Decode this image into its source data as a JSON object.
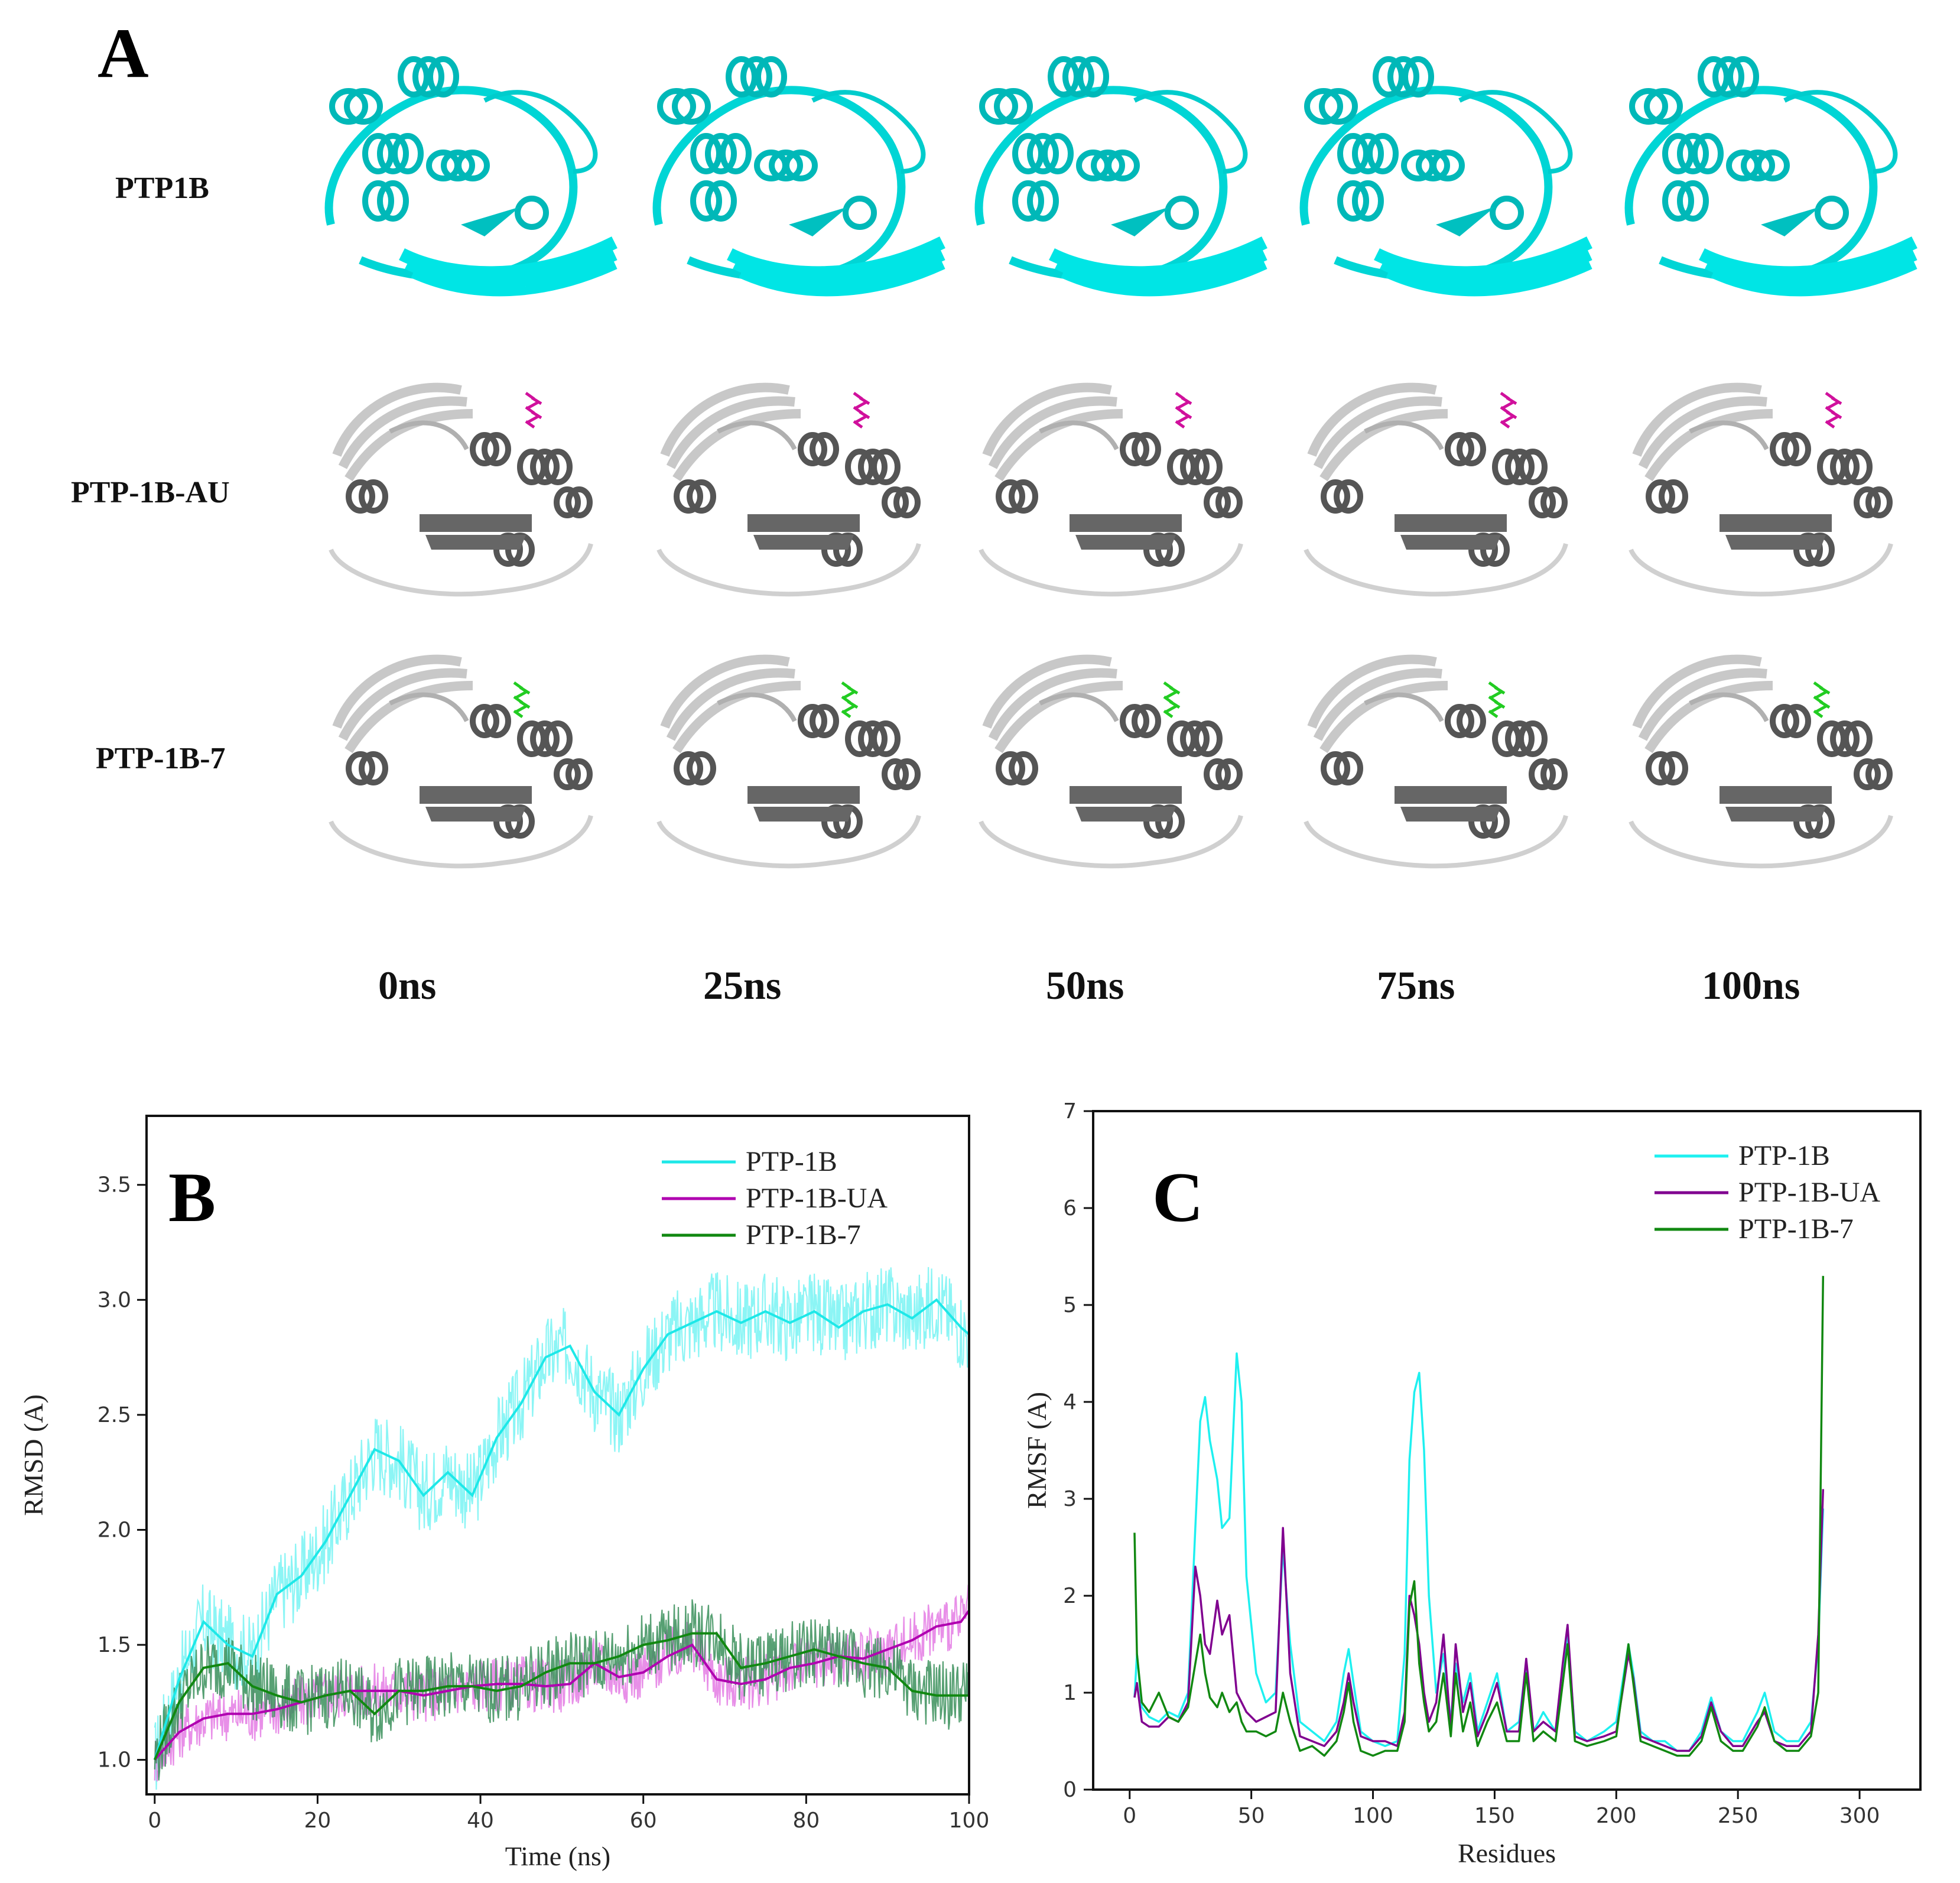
{
  "panel_a": {
    "letter": "A",
    "rows": [
      {
        "label": "PTP1B",
        "protein_color": "#00e0e0",
        "ligand": null
      },
      {
        "label": "PTP-1B-AU",
        "protein_color": "#8a8a8a",
        "ligand": "#d0109c"
      },
      {
        "label": "PTP-1B-7",
        "protein_color": "#8a8a8a",
        "ligand": "#22cc22"
      }
    ],
    "times": [
      "0ns",
      "25ns",
      "50ns",
      "75ns",
      "100ns"
    ]
  },
  "chart_data": [
    {
      "panel": "B",
      "type": "line",
      "title": "",
      "xlabel": "Time (ns)",
      "ylabel": "RMSD (A)",
      "xlim": [
        0,
        100
      ],
      "ylim": [
        0.85,
        3.8
      ],
      "xticks": [
        0,
        20,
        40,
        60,
        80,
        100
      ],
      "yticks": [
        1.0,
        1.5,
        2.0,
        2.5,
        3.0,
        3.5
      ],
      "legend": "top-right",
      "series": [
        {
          "name": "PTP-1B",
          "color": "#1ee8e8",
          "noise_color": "#7ff4f4",
          "x": [
            0,
            3,
            6,
            9,
            12,
            15,
            18,
            21,
            24,
            27,
            30,
            33,
            36,
            39,
            42,
            45,
            48,
            51,
            54,
            57,
            60,
            63,
            66,
            69,
            72,
            75,
            78,
            81,
            84,
            87,
            90,
            93,
            96,
            99,
            100
          ],
          "values": [
            1.0,
            1.35,
            1.6,
            1.5,
            1.45,
            1.72,
            1.8,
            1.95,
            2.15,
            2.35,
            2.3,
            2.15,
            2.25,
            2.15,
            2.4,
            2.55,
            2.75,
            2.8,
            2.6,
            2.5,
            2.7,
            2.85,
            2.9,
            2.95,
            2.9,
            2.95,
            2.9,
            2.95,
            2.88,
            2.95,
            2.98,
            2.92,
            3.0,
            2.88,
            2.85
          ]
        },
        {
          "name": "PTP-1B-UA",
          "color": "#b000b0",
          "noise_color": "#e683e6",
          "x": [
            0,
            3,
            6,
            9,
            12,
            15,
            18,
            21,
            24,
            27,
            30,
            33,
            36,
            39,
            42,
            45,
            48,
            51,
            54,
            57,
            60,
            63,
            66,
            69,
            72,
            75,
            78,
            81,
            84,
            87,
            90,
            93,
            96,
            99,
            100
          ],
          "values": [
            1.0,
            1.12,
            1.18,
            1.2,
            1.2,
            1.22,
            1.25,
            1.28,
            1.3,
            1.3,
            1.3,
            1.28,
            1.3,
            1.32,
            1.33,
            1.33,
            1.32,
            1.33,
            1.42,
            1.36,
            1.38,
            1.45,
            1.5,
            1.35,
            1.33,
            1.35,
            1.4,
            1.42,
            1.45,
            1.44,
            1.48,
            1.52,
            1.58,
            1.6,
            1.65
          ]
        },
        {
          "name": "PTP-1B-7",
          "color": "#118811",
          "noise_color": "#3a8f5a",
          "x": [
            0,
            3,
            6,
            9,
            12,
            15,
            18,
            21,
            24,
            27,
            30,
            33,
            36,
            39,
            42,
            45,
            48,
            51,
            54,
            57,
            60,
            63,
            66,
            69,
            72,
            75,
            78,
            81,
            84,
            87,
            90,
            93,
            96,
            99,
            100
          ],
          "values": [
            1.0,
            1.25,
            1.4,
            1.42,
            1.32,
            1.28,
            1.25,
            1.28,
            1.3,
            1.2,
            1.3,
            1.3,
            1.32,
            1.32,
            1.3,
            1.32,
            1.38,
            1.42,
            1.42,
            1.45,
            1.5,
            1.52,
            1.55,
            1.55,
            1.4,
            1.42,
            1.45,
            1.48,
            1.45,
            1.42,
            1.4,
            1.3,
            1.28,
            1.28,
            1.28
          ]
        }
      ]
    },
    {
      "panel": "C",
      "type": "line",
      "title": "",
      "xlabel": "Residues",
      "ylabel": "RMSF (A)",
      "xlim": [
        -15,
        325
      ],
      "ylim": [
        0,
        7
      ],
      "xticks": [
        0,
        50,
        100,
        150,
        200,
        250,
        300
      ],
      "yticks": [
        0,
        1,
        2,
        3,
        4,
        5,
        6,
        7
      ],
      "legend": "top-right",
      "series": [
        {
          "name": "PTP-1B",
          "color": "#1ef0f0",
          "x": [
            2,
            3,
            5,
            8,
            12,
            16,
            20,
            24,
            27,
            29,
            31,
            33,
            36,
            38,
            41,
            44,
            46,
            48,
            52,
            56,
            60,
            63,
            66,
            70,
            75,
            80,
            85,
            88,
            90,
            92,
            95,
            100,
            105,
            110,
            113,
            115,
            117,
            119,
            121,
            123,
            126,
            129,
            132,
            134,
            137,
            140,
            143,
            147,
            151,
            155,
            160,
            163,
            166,
            170,
            175,
            178,
            180,
            183,
            188,
            195,
            200,
            205,
            207,
            210,
            215,
            220,
            225,
            230,
            235,
            239,
            243,
            248,
            252,
            258,
            261,
            265,
            270,
            275,
            280,
            283,
            285
          ],
          "values": [
            0.95,
            1.4,
            0.85,
            0.75,
            0.7,
            0.8,
            0.75,
            1.0,
            2.7,
            3.8,
            4.05,
            3.6,
            3.2,
            2.7,
            2.8,
            4.5,
            4.0,
            2.2,
            1.2,
            0.9,
            1.0,
            2.5,
            1.5,
            0.7,
            0.6,
            0.5,
            0.7,
            1.2,
            1.45,
            1.1,
            0.6,
            0.5,
            0.45,
            0.5,
            1.4,
            3.4,
            4.1,
            4.3,
            3.5,
            2.0,
            1.0,
            1.4,
            0.7,
            1.3,
            0.9,
            1.2,
            0.6,
            0.9,
            1.2,
            0.6,
            0.7,
            1.3,
            0.6,
            0.8,
            0.6,
            1.1,
            1.6,
            0.6,
            0.5,
            0.6,
            0.7,
            1.5,
            1.2,
            0.6,
            0.5,
            0.5,
            0.4,
            0.4,
            0.6,
            0.95,
            0.6,
            0.5,
            0.5,
            0.8,
            1.0,
            0.6,
            0.5,
            0.5,
            0.7,
            1.5,
            2.9
          ]
        },
        {
          "name": "PTP-1B-UA",
          "color": "#80008f",
          "x": [
            2,
            3,
            5,
            8,
            12,
            16,
            20,
            24,
            27,
            29,
            31,
            33,
            36,
            38,
            41,
            44,
            46,
            48,
            52,
            56,
            60,
            63,
            66,
            70,
            75,
            80,
            85,
            88,
            90,
            92,
            95,
            100,
            105,
            110,
            113,
            115,
            117,
            119,
            121,
            123,
            126,
            129,
            132,
            134,
            137,
            140,
            143,
            147,
            151,
            155,
            160,
            163,
            166,
            170,
            175,
            178,
            180,
            183,
            188,
            195,
            200,
            205,
            207,
            210,
            215,
            220,
            225,
            230,
            235,
            239,
            243,
            248,
            252,
            258,
            261,
            265,
            270,
            275,
            280,
            283,
            285
          ],
          "values": [
            0.95,
            1.1,
            0.7,
            0.65,
            0.65,
            0.75,
            0.7,
            0.9,
            2.3,
            2.0,
            1.5,
            1.4,
            1.95,
            1.6,
            1.8,
            1.0,
            0.9,
            0.8,
            0.7,
            0.75,
            0.8,
            2.7,
            1.2,
            0.55,
            0.5,
            0.45,
            0.6,
            0.9,
            1.2,
            0.9,
            0.55,
            0.5,
            0.5,
            0.45,
            0.8,
            2.0,
            1.8,
            1.5,
            1.0,
            0.7,
            0.9,
            1.6,
            0.6,
            1.5,
            0.8,
            1.1,
            0.55,
            0.8,
            1.1,
            0.6,
            0.6,
            1.35,
            0.6,
            0.7,
            0.6,
            1.3,
            1.7,
            0.55,
            0.5,
            0.55,
            0.6,
            1.4,
            1.15,
            0.55,
            0.5,
            0.45,
            0.4,
            0.4,
            0.55,
            0.9,
            0.6,
            0.45,
            0.45,
            0.7,
            0.8,
            0.5,
            0.45,
            0.45,
            0.6,
            1.6,
            3.1
          ]
        },
        {
          "name": "PTP-1B-7",
          "color": "#118811",
          "x": [
            2,
            3,
            5,
            8,
            12,
            16,
            20,
            24,
            27,
            29,
            31,
            33,
            36,
            38,
            41,
            44,
            46,
            48,
            52,
            56,
            60,
            63,
            66,
            70,
            75,
            80,
            85,
            88,
            90,
            92,
            95,
            100,
            105,
            110,
            113,
            115,
            117,
            119,
            121,
            123,
            126,
            129,
            132,
            134,
            137,
            140,
            143,
            147,
            151,
            155,
            160,
            163,
            166,
            170,
            175,
            178,
            180,
            183,
            188,
            195,
            200,
            205,
            207,
            210,
            215,
            220,
            225,
            230,
            235,
            239,
            243,
            248,
            252,
            258,
            261,
            265,
            270,
            275,
            280,
            283,
            285
          ],
          "values": [
            2.65,
            1.4,
            0.9,
            0.8,
            1.0,
            0.75,
            0.7,
            0.85,
            1.3,
            1.6,
            1.2,
            0.95,
            0.85,
            1.0,
            0.8,
            0.9,
            0.7,
            0.6,
            0.6,
            0.55,
            0.6,
            1.0,
            0.7,
            0.4,
            0.45,
            0.35,
            0.5,
            0.8,
            1.1,
            0.7,
            0.4,
            0.35,
            0.4,
            0.4,
            0.7,
            1.9,
            2.15,
            1.3,
            0.9,
            0.6,
            0.7,
            1.2,
            0.55,
            1.2,
            0.6,
            0.9,
            0.45,
            0.7,
            0.9,
            0.5,
            0.5,
            1.2,
            0.5,
            0.6,
            0.5,
            1.1,
            1.5,
            0.5,
            0.45,
            0.5,
            0.55,
            1.5,
            1.1,
            0.5,
            0.45,
            0.4,
            0.35,
            0.35,
            0.5,
            0.85,
            0.5,
            0.4,
            0.4,
            0.65,
            0.85,
            0.5,
            0.4,
            0.4,
            0.55,
            1.0,
            5.3
          ]
        }
      ]
    }
  ]
}
